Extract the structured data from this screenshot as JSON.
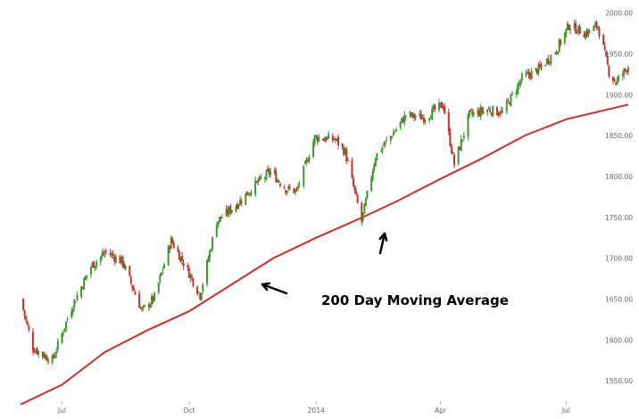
{
  "chart_data": {
    "type": "candlestick",
    "title": "",
    "xlabel": "",
    "ylabel": "",
    "ylim": [
      1525,
      2005
    ],
    "y_ticks": [
      "1550.00",
      "1600.00",
      "1650.00",
      "1700.00",
      "1750.00",
      "1800.00",
      "1850.00",
      "1900.00",
      "1950.00",
      "2000.00"
    ],
    "x_ticks": [
      {
        "label": "Jul",
        "date": "2013-07-01"
      },
      {
        "label": "Oct",
        "date": "2013-10-01"
      },
      {
        "label": "2014",
        "date": "2014-01-01"
      },
      {
        "label": "Apr",
        "date": "2014-04-01"
      },
      {
        "label": "Jul",
        "date": "2014-07-01"
      }
    ],
    "x_range": [
      "2013-06-01",
      "2014-08-15"
    ],
    "grid": false,
    "colors": {
      "up": "#3a9a2b",
      "down": "#c8312d",
      "moving_average": "#d62b2b"
    },
    "price_path": [
      [
        "2013-06-01",
        1650
      ],
      [
        "2013-06-10",
        1590
      ],
      [
        "2013-06-24",
        1575
      ],
      [
        "2013-07-08",
        1640
      ],
      [
        "2013-07-22",
        1690
      ],
      [
        "2013-08-02",
        1708
      ],
      [
        "2013-08-14",
        1695
      ],
      [
        "2013-08-28",
        1635
      ],
      [
        "2013-09-06",
        1652
      ],
      [
        "2013-09-18",
        1722
      ],
      [
        "2013-09-30",
        1685
      ],
      [
        "2013-10-09",
        1655
      ],
      [
        "2013-10-21",
        1745
      ],
      [
        "2013-11-04",
        1765
      ],
      [
        "2013-11-18",
        1790
      ],
      [
        "2013-11-29",
        1806
      ],
      [
        "2013-12-10",
        1785
      ],
      [
        "2013-12-18",
        1782
      ],
      [
        "2013-12-31",
        1848
      ],
      [
        "2014-01-15",
        1845
      ],
      [
        "2014-01-22",
        1830
      ],
      [
        "2014-02-03",
        1745
      ],
      [
        "2014-02-13",
        1825
      ],
      [
        "2014-02-28",
        1858
      ],
      [
        "2014-03-07",
        1875
      ],
      [
        "2014-03-20",
        1872
      ],
      [
        "2014-04-03",
        1888
      ],
      [
        "2014-04-11",
        1815
      ],
      [
        "2014-04-22",
        1875
      ],
      [
        "2014-05-05",
        1882
      ],
      [
        "2014-05-16",
        1878
      ],
      [
        "2014-05-30",
        1920
      ],
      [
        "2014-06-12",
        1932
      ],
      [
        "2014-06-24",
        1955
      ],
      [
        "2014-07-03",
        1985
      ],
      [
        "2014-07-15",
        1975
      ],
      [
        "2014-07-24",
        1985
      ],
      [
        "2014-08-01",
        1928
      ],
      [
        "2014-08-06",
        1915
      ],
      [
        "2014-08-15",
        1935
      ]
    ],
    "moving_average_200": [
      [
        "2013-06-01",
        1521
      ],
      [
        "2013-07-01",
        1545
      ],
      [
        "2013-08-01",
        1585
      ],
      [
        "2013-09-01",
        1612
      ],
      [
        "2013-10-01",
        1635
      ],
      [
        "2013-11-01",
        1668
      ],
      [
        "2013-12-01",
        1700
      ],
      [
        "2014-01-01",
        1725
      ],
      [
        "2014-02-01",
        1748
      ],
      [
        "2014-03-01",
        1770
      ],
      [
        "2014-04-01",
        1797
      ],
      [
        "2014-05-01",
        1822
      ],
      [
        "2014-06-01",
        1850
      ],
      [
        "2014-07-01",
        1870
      ],
      [
        "2014-08-15",
        1888
      ]
    ],
    "annotations": [
      {
        "text": "200 Day Moving Average"
      }
    ]
  }
}
